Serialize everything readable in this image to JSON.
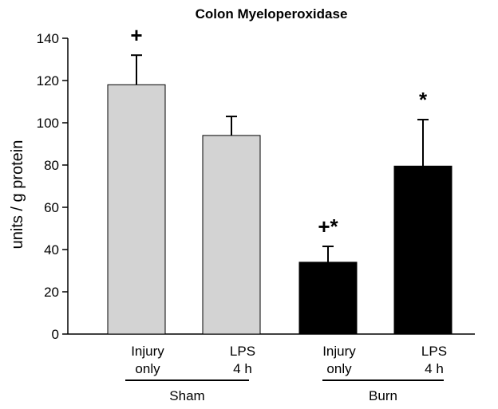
{
  "chart_data": {
    "type": "bar",
    "title": "Colon Myeloperoxidase",
    "ylabel": "units / g protein",
    "xlabel": "",
    "ylim": [
      0,
      140
    ],
    "yticks": [
      0,
      20,
      40,
      60,
      80,
      100,
      120,
      140
    ],
    "grid": false,
    "legend": "none",
    "categories": [
      "Injury only",
      "LPS 4 h",
      "Injury only",
      "LPS 4 h"
    ],
    "category_lines": [
      [
        "Injury",
        "only"
      ],
      [
        "LPS",
        "4 h"
      ],
      [
        "Injury",
        "only"
      ],
      [
        "LPS",
        "4 h"
      ]
    ],
    "groups": [
      {
        "label": "Sham",
        "members": [
          0,
          1
        ]
      },
      {
        "label": "Burn",
        "members": [
          2,
          3
        ]
      }
    ],
    "values": [
      118,
      94,
      34,
      79.5
    ],
    "errors": [
      14,
      9,
      7.5,
      22
    ],
    "bar_colors": [
      "#d3d3d3",
      "#d3d3d3",
      "#000000",
      "#000000"
    ],
    "annotations": [
      "+",
      "",
      "+*",
      "*"
    ]
  }
}
